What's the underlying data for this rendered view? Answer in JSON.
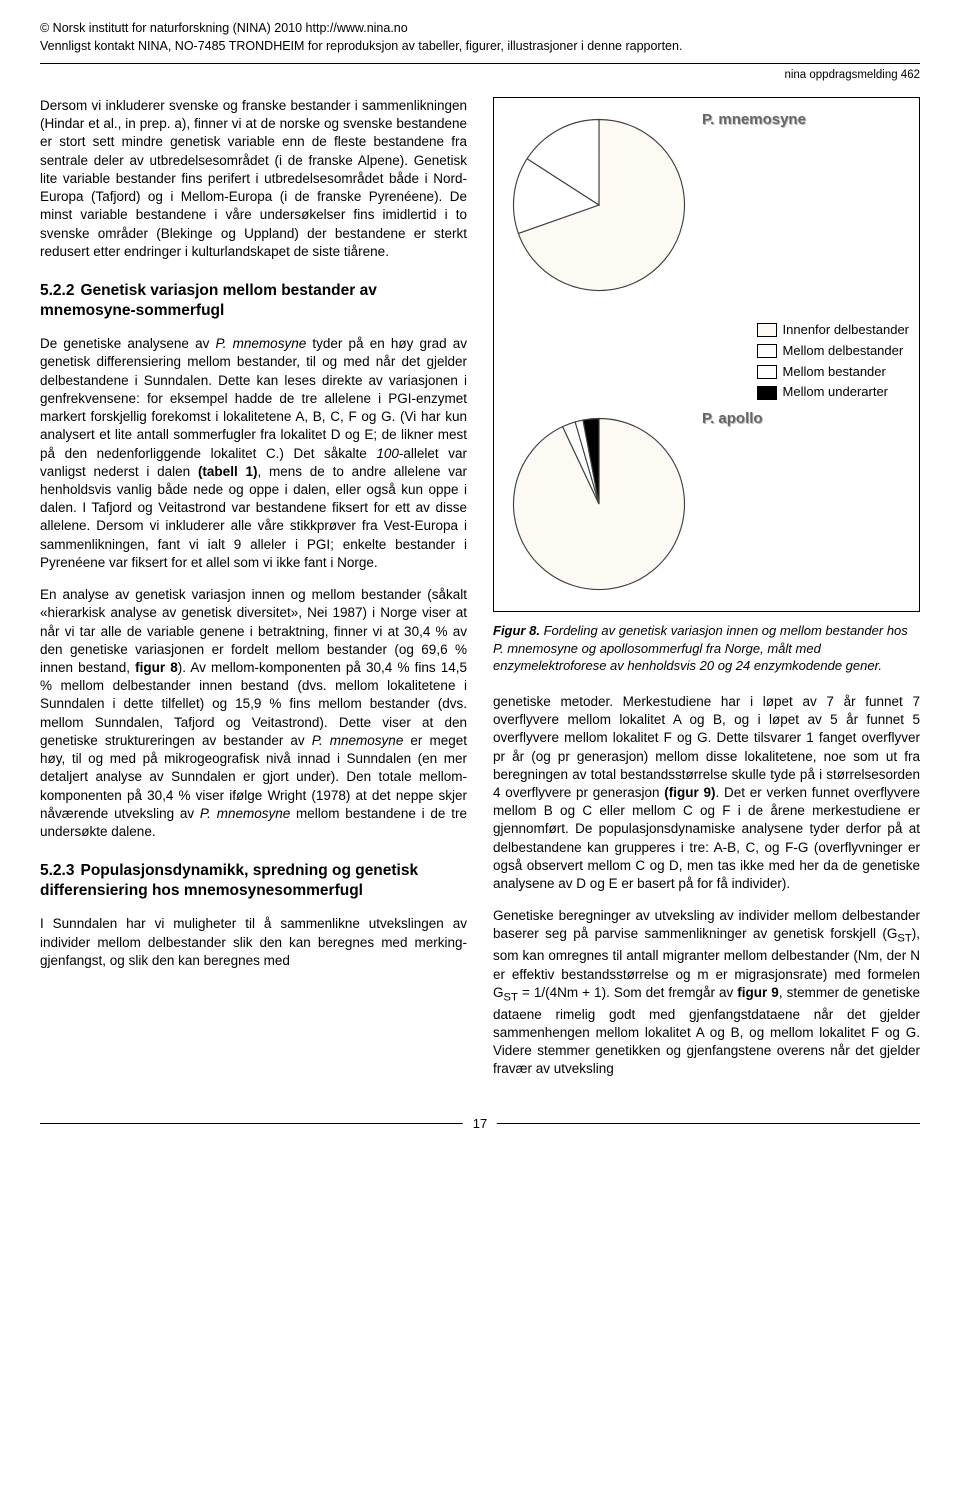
{
  "watermark": {
    "line1": "© Norsk institutt for naturforskning (NINA) 2010 http://www.nina.no",
    "line2": "Vennligst kontakt NINA, NO-7485 TRONDHEIM for reproduksjon av tabeller, figurer, illustrasjoner i denne rapporten."
  },
  "report_tag": "nina oppdragsmelding 462",
  "left": {
    "p1": "Dersom vi inkluderer svenske og franske bestander i sammenlikningen (Hindar et al., in prep. a), finner vi at de norske og svenske bestandene er stort sett mindre genetisk variable enn de fleste bestandene fra sentrale deler av utbredelsesområdet (i de franske Alpene). Genetisk lite variable bestander fins perifert i utbredelsesområdet både i Nord-Europa (Tafjord) og i Mellom-Europa (i de franske Pyrenéene). De minst variable bestandene i våre undersøkelser fins imidlertid i to svenske områder (Blekinge og Uppland) der bestandene er sterkt redusert etter endringer i kulturlandskapet de siste tiårene.",
    "h522_num": "5.2.2",
    "h522_rest": "Genetisk variasjon mellom bestander av mnemosyne-sommerfugl",
    "p2a": "De genetiske analysene av ",
    "p2_it1": "P. mnemosyne",
    "p2b": " tyder på en høy grad av genetisk differensiering mellom bestander, til og med når det gjelder delbestandene i Sunndalen. Dette kan leses direkte av variasjonen i genfrekvensene: for eksempel hadde de tre allelene i PGI-enzymet markert forskjellig forekomst i lokalitetene A, B, C, F og G. (Vi har kun analysert et lite antall sommerfugler fra lokalitet D og E; de likner mest på den nedenforliggende lokalitet C.) Det såkalte ",
    "p2_it2": "100",
    "p2c": "-allelet var vanligst nederst i dalen ",
    "p2_b1": "(tabell 1)",
    "p2d": ", mens de to andre allelene var henholdsvis vanlig både nede og oppe i dalen, eller også kun oppe i dalen. I Tafjord og Veitastrond var bestandene fiksert for ett av disse allelene. Dersom vi inkluderer alle våre stikkprøver fra Vest-Europa i sammenlikningen, fant vi ialt 9 alleler i PGI; enkelte bestander i Pyrenéene var fiksert for et allel som vi ikke fant i Norge.",
    "p3a": "En analyse av genetisk variasjon innen og mellom bestander (såkalt «hierarkisk analyse av genetisk diversitet», Nei 1987) i Norge viser at når vi tar alle de variable genene i betraktning, finner vi at 30,4 % av den genetiske variasjonen er fordelt mellom bestander (og 69,6 % innen bestand, ",
    "p3_b1": "figur 8",
    "p3b": "). Av mellom-komponenten på 30,4 % fins 14,5 % mellom delbestander innen bestand (dvs. mellom lokalitetene i Sunndalen i dette tilfellet) og 15,9 % fins mellom bestander (dvs. mellom Sunndalen, Tafjord og Veitastrond). Dette viser at den genetiske struktureringen av bestander av ",
    "p3_it1": "P. mnemosyne",
    "p3c": " er meget høy, til og med på mikrogeografisk nivå innad i Sunndalen (en mer detaljert analyse av Sunndalen er gjort under). Den totale mellom-komponenten på 30,4 % viser ifølge Wright (1978) at det neppe skjer nåværende utveksling av ",
    "p3_it2": "P. mnemosyne",
    "p3d": " mellom bestandene i de tre undersøkte dalene.",
    "h523_num": "5.2.3",
    "h523_rest": "Populasjonsdynamikk, spredning og genetisk differensiering hos mnemosynesommerfugl",
    "p4": "I Sunndalen har vi muligheter til å sammenlikne utvekslingen av individer mellom delbestander slik den kan beregnes med merking-gjenfangst, og slik den kan beregnes med"
  },
  "figure": {
    "pie1": {
      "label": "P. mnemosyne",
      "slices": [
        {
          "value": 69.6,
          "color": "#fcfaf2"
        },
        {
          "value": 14.5,
          "color": "#ffffff"
        },
        {
          "value": 15.9,
          "color": "#ffffff"
        }
      ],
      "stroke": "#404040",
      "size": 190
    },
    "pie2": {
      "label": "P. apollo",
      "slices": [
        {
          "value": 93,
          "color": "#fcfaf2"
        },
        {
          "value": 2.5,
          "color": "#ffffff"
        },
        {
          "value": 1.5,
          "color": "#ffffff"
        },
        {
          "value": 3,
          "color": "#000000"
        }
      ],
      "stroke": "#404040",
      "size": 190
    },
    "legend": [
      {
        "color": "#fcfaf2",
        "label": "Innenfor delbestander"
      },
      {
        "color": "#ffffff",
        "label": "Mellom delbestander"
      },
      {
        "color": "#ffffff",
        "label": "Mellom bestander"
      },
      {
        "color": "#000000",
        "label": "Mellom underarter"
      }
    ],
    "caption_b": "Figur 8.",
    "caption_rest": " Fordeling av genetisk variasjon innen og mellom bestander hos P. mnemosyne og apollosommerfugl fra Norge, målt med enzymelektroforese av henholdsvis 20 og 24 enzymkodende gener."
  },
  "right": {
    "p5a": "genetiske metoder. Merkestudiene har i løpet av 7 år funnet 7 overflyvere mellom lokalitet A og B, og i løpet av 5 år funnet 5 overflyvere mellom lokalitet F og G. Dette tilsvarer 1 fanget overflyver pr år (og pr generasjon) mellom disse lokalitetene, noe som ut fra beregningen av total bestandsstørrelse skulle tyde på i størrelsesorden 4 overflyvere pr generasjon ",
    "p5_b1": "(figur 9)",
    "p5b": ". Det er verken funnet overflyvere mellom B og C eller mellom C og F i de årene merkestudiene er gjennomført. De populasjonsdynamiske analysene tyder derfor på at delbestandene kan grupperes i tre: A-B, C, og F-G (overflyvninger er også observert mellom C og D, men tas ikke med her da de genetiske analysene av D og E er basert på for få individer).",
    "p6a": "Genetiske beregninger av utveksling av individer mellom delbestander baserer seg på parvise sammenlikninger av genetisk forskjell (G",
    "p6_sub1": "ST",
    "p6b": "), som kan omregnes til antall migranter mellom delbestander (Nm, der N er effektiv bestandsstørrelse og m er migrasjonsrate) med formelen G",
    "p6_sub2": "ST",
    "p6c": " = 1/(4Nm + 1). Som det fremgår av ",
    "p6_b1": "figur 9",
    "p6d": ", stemmer de genetiske dataene rimelig godt med gjenfangstdataene når det gjelder sammenhengen mellom lokalitet A og B, og mellom lokalitet F og G. Videre stemmer genetikken og gjenfangstene overens når det gjelder fravær av utveksling"
  },
  "page_number": "17"
}
